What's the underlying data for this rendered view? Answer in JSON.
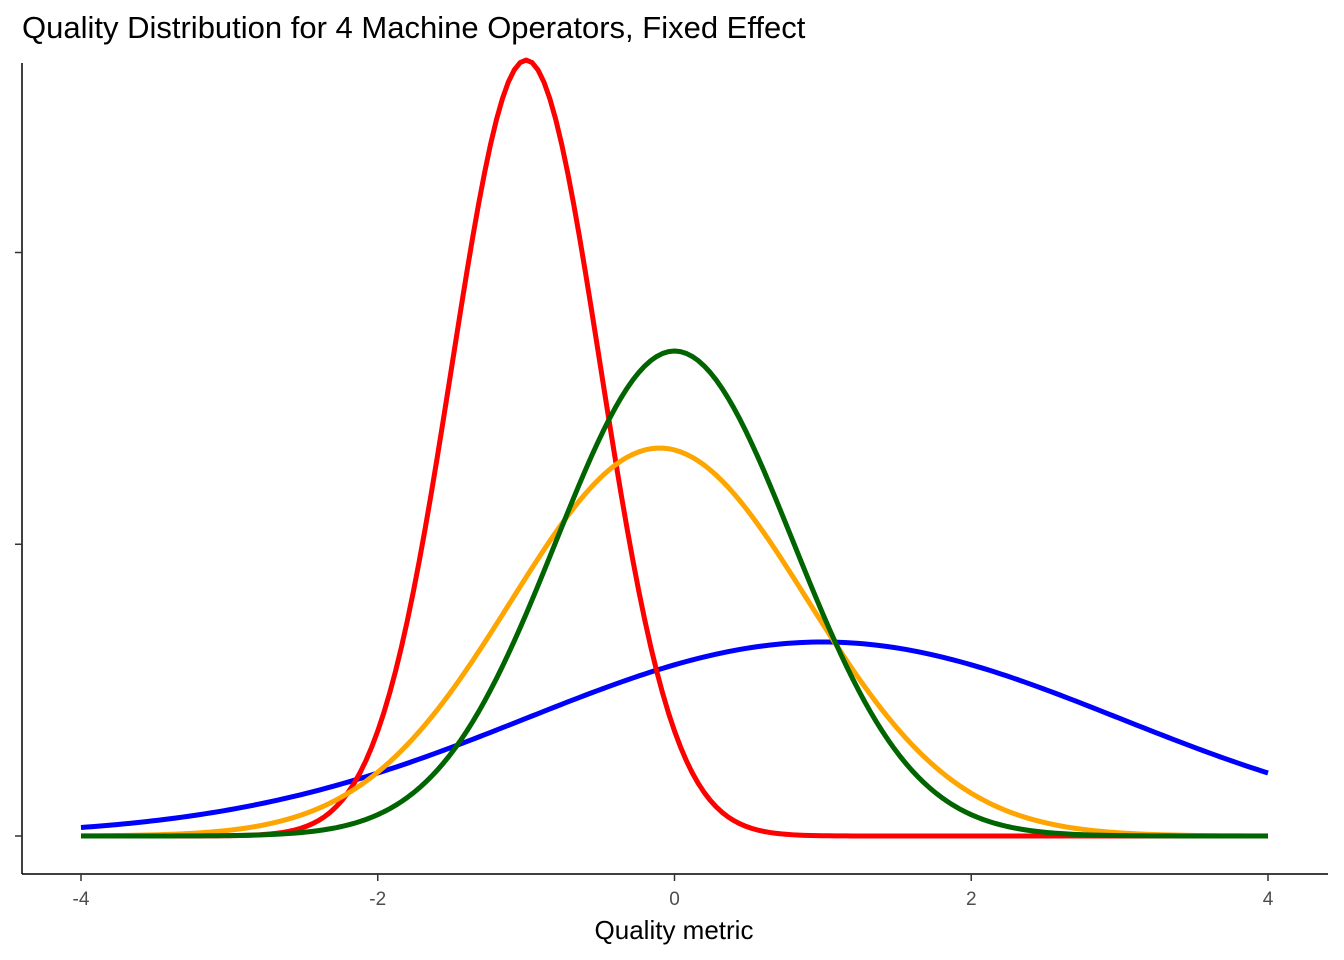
{
  "chart_data": {
    "type": "line",
    "title": "Quality Distribution for 4 Machine Operators, Fixed Effect",
    "xlabel": "Quality metric",
    "ylabel": "",
    "xlim": [
      -4,
      4
    ],
    "ylim": [
      0,
      0.8
    ],
    "x_ticks": [
      -4,
      -2,
      0,
      2,
      4
    ],
    "x_tick_labels": [
      "-4",
      "-2",
      "0",
      "2",
      "4"
    ],
    "y_ticks": [
      0,
      0.3,
      0.6
    ],
    "y_tick_labels": [
      "",
      "",
      ""
    ],
    "grid": false,
    "legend": "none",
    "series": [
      {
        "color": "#0000FF",
        "mean": 1.0,
        "sd": 2.0,
        "x": [
          -4,
          -3,
          -2,
          -1,
          0,
          1,
          2,
          3,
          4
        ],
        "values": [
          0.0088,
          0.027,
          0.0648,
          0.121,
          0.176,
          0.1995,
          0.176,
          0.121,
          0.0648
        ]
      },
      {
        "color": "#FF0000",
        "mean": -1.0,
        "sd": 0.5,
        "x": [
          -4,
          -3,
          -2,
          -1,
          0,
          1,
          2,
          3,
          4
        ],
        "values": [
          0.0,
          0.0003,
          0.108,
          0.798,
          0.108,
          0.0003,
          0.0,
          0.0,
          0.0
        ]
      },
      {
        "color": "#FFA500",
        "mean": -0.1,
        "sd": 1.0,
        "x": [
          -4,
          -3,
          -2,
          -1,
          0,
          1,
          2,
          3,
          4
        ],
        "values": [
          0.0002,
          0.006,
          0.0656,
          0.266,
          0.397,
          0.218,
          0.044,
          0.0032,
          0.0001
        ]
      },
      {
        "color": "#006400",
        "mean": 0.0,
        "sd": 0.8,
        "x": [
          -4,
          -3,
          -2,
          -1,
          0,
          1,
          2,
          3,
          4
        ],
        "values": [
          0.0,
          0.0004,
          0.0219,
          0.228,
          0.499,
          0.228,
          0.0219,
          0.0004,
          0.0
        ]
      }
    ]
  }
}
